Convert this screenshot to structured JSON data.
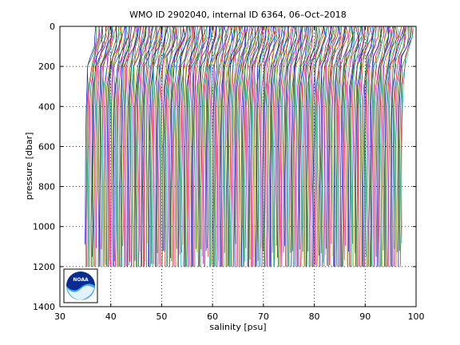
{
  "chart_data": {
    "type": "line",
    "title": "WMO ID 2902040, internal ID 6364, 06–Oct–2018",
    "xlabel": "salinity [psu]",
    "ylabel": "pressure [dbar]",
    "xlim": [
      30,
      100
    ],
    "ylim": [
      0,
      1400
    ],
    "y_reversed": true,
    "x_ticks": [
      30,
      40,
      50,
      60,
      70,
      80,
      90,
      100
    ],
    "y_ticks": [
      0,
      200,
      400,
      600,
      800,
      1000,
      1200,
      1400
    ],
    "grid": "dotted",
    "logo": "noaa-logo",
    "colors": [
      "#0000ff",
      "#008000",
      "#ff0000",
      "#00bfbf",
      "#bf00bf",
      "#bfbf00",
      "#404040"
    ],
    "profiles": {
      "count": 312,
      "first_offset_psu": 35.0,
      "spacing_psu": 0.2,
      "pressure_top": 0,
      "pressure_bottom": 1200,
      "shape": [
        [
          0,
          2.2
        ],
        [
          50,
          2.1
        ],
        [
          100,
          1.6
        ],
        [
          150,
          1.0
        ],
        [
          200,
          0.55
        ],
        [
          300,
          0.3
        ],
        [
          400,
          0.15
        ],
        [
          600,
          0.05
        ],
        [
          800,
          0.0
        ],
        [
          1000,
          -0.02
        ],
        [
          1200,
          -0.05
        ]
      ]
    }
  }
}
